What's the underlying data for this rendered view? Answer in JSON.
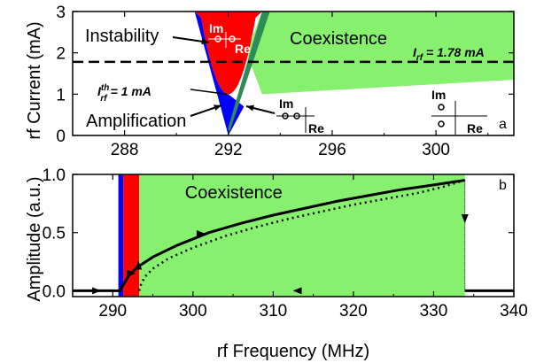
{
  "colors": {
    "red": "#ff0000",
    "blue": "#0000ff",
    "green": "#87f06e",
    "dark_green": "#2e8b57",
    "black": "#000000",
    "white": "#ffffff"
  },
  "chart_data": [
    {
      "panel": "a",
      "type": "area",
      "xlabel": "",
      "ylabel": "rf Current (mA)",
      "xlim": [
        286,
        303
      ],
      "ylim": [
        0,
        3
      ],
      "xticks": [
        "288",
        "292",
        "296",
        "300"
      ],
      "yticks": [
        "0",
        "1",
        "2",
        "3"
      ],
      "regions": {
        "instability_upper": [
          [
            290.7,
            3.0
          ],
          [
            291.3,
            2.0
          ],
          [
            292.0,
            1.0
          ],
          [
            292.7,
            2.0
          ],
          [
            293.3,
            3.0
          ]
        ],
        "amplification": [
          [
            292.0,
            0.0
          ],
          [
            290.7,
            3.0
          ],
          [
            292.0,
            1.0
          ]
        ],
        "coexistence_boundary": [
          [
            292.0,
            0.0
          ],
          [
            293.3,
            1.0
          ],
          [
            303.0,
            1.35
          ]
        ]
      },
      "reference_line": {
        "y": 1.78,
        "label": "I_rf = 1.78 mA",
        "style": "dashed"
      },
      "threshold_point": {
        "x": 292.0,
        "y": 1.0
      },
      "labels": {
        "instability": "Instability",
        "coexistence": "Coexistence",
        "amplification": "Amplification",
        "threshold_prefix": "I",
        "threshold_sup": "th",
        "threshold_sub": "rf",
        "threshold_suffix": "= 1 mA",
        "line_prefix": "I",
        "line_sub": "rf",
        "line_suffix": " = 1.78 mA",
        "im": "Im",
        "re": "Re",
        "panel_letter": "a"
      }
    },
    {
      "panel": "b",
      "type": "line",
      "xlabel": "rf Frequency (MHz)",
      "ylabel": "Amplitude (a.u.)",
      "xlim": [
        285,
        340
      ],
      "ylim": [
        -0.05,
        1.0
      ],
      "xticks": [
        "290",
        "300",
        "310",
        "320",
        "330",
        "340"
      ],
      "yticks": [
        "0.0",
        "0.5",
        "1.0"
      ],
      "regions": {
        "blue": [
          290.7,
          291.3
        ],
        "red": [
          291.3,
          293.3
        ],
        "green": [
          293.3,
          333.9
        ]
      },
      "series": [
        {
          "style": "solid",
          "x": [
            285,
            290.9,
            291.3,
            292,
            293,
            295,
            298,
            302,
            306,
            310,
            314,
            318,
            322,
            326,
            330,
            333.9
          ],
          "y": [
            0.0,
            0.0,
            0.05,
            0.13,
            0.2,
            0.29,
            0.39,
            0.5,
            0.58,
            0.65,
            0.71,
            0.77,
            0.82,
            0.87,
            0.91,
            0.95
          ]
        },
        {
          "style": "dotted",
          "x": [
            293.3,
            293.5,
            294,
            295,
            297,
            300,
            304,
            308,
            312,
            316,
            320,
            324,
            328,
            331,
            333.9
          ],
          "y": [
            0.0,
            0.05,
            0.12,
            0.19,
            0.28,
            0.37,
            0.47,
            0.55,
            0.62,
            0.68,
            0.74,
            0.79,
            0.84,
            0.89,
            0.95
          ]
        },
        {
          "style": "solid",
          "x": [
            333.9,
            340
          ],
          "y": [
            0.0,
            0.0
          ]
        }
      ],
      "vertical_drop": {
        "x": 333.9,
        "y_top": 0.95,
        "y_bottom": 0.0
      },
      "labels": {
        "coexistence": "Coexistence",
        "panel_letter": "b"
      }
    }
  ]
}
